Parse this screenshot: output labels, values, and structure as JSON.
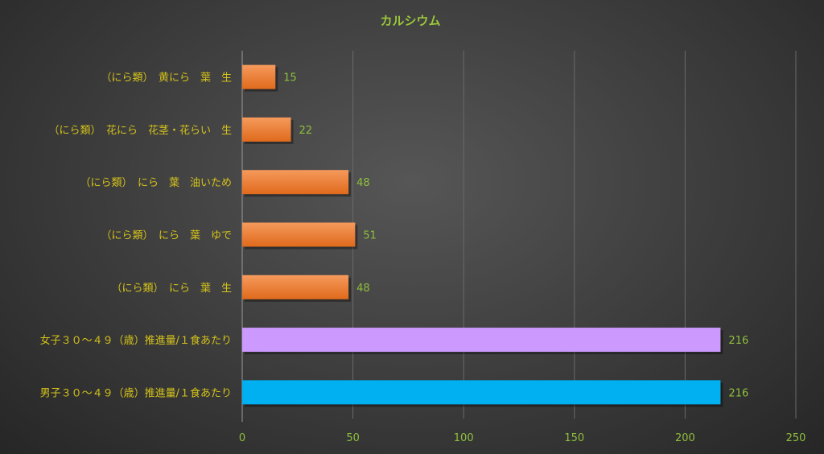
{
  "chart_data": {
    "type": "bar",
    "orientation": "horizontal",
    "title": "カルシウム",
    "categories": [
      "（にら類）　黄にら　葉　生",
      "（にら類）　花にら　花茎・花らい　生",
      "（にら類）　にら　葉　油いため",
      "（にら類）　にら　葉　ゆで",
      "（にら類）　にら　葉　生",
      "女子３０～４９（歳）推進量/１食あたり",
      "男子３０～４９（歳）推進量/１食あたり"
    ],
    "values": [
      15,
      22,
      48,
      51,
      48,
      216,
      216
    ],
    "bar_colors": [
      "#ed7d31",
      "#ed7d31",
      "#ed7d31",
      "#ed7d31",
      "#ed7d31",
      "#cc99ff",
      "#00b0f0"
    ],
    "xlim": [
      0,
      250
    ],
    "xticks": [
      0,
      50,
      100,
      150,
      200,
      250
    ],
    "grid": true,
    "legend": "none"
  },
  "colors": {
    "title": "#9bc83a",
    "category_label": "#d4c21a",
    "tick_label": "#8fbf3c",
    "data_label": "#8fbf3c",
    "grid": "#6a6a6a"
  }
}
